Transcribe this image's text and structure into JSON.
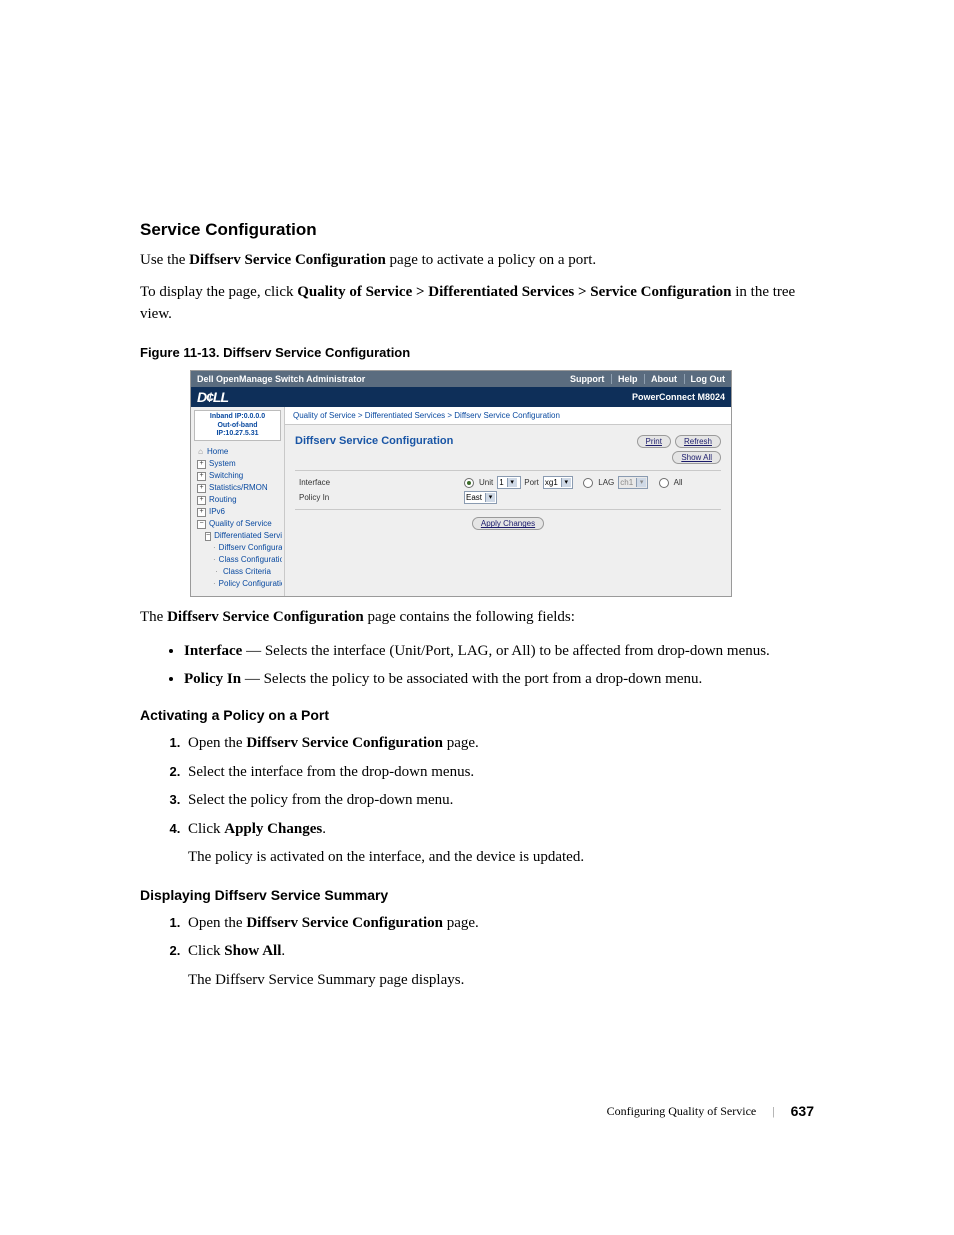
{
  "headings": {
    "h2": "Service Configuration",
    "figcap": "Figure 11-13.    Diffserv Service Configuration",
    "activating": "Activating a Policy on a Port",
    "displaying": "Displaying Diffserv Service Summary"
  },
  "paragraphs": {
    "p1_pre": "Use the ",
    "p1_b": "Diffserv Service Configuration",
    "p1_post": " page to activate a policy on a port.",
    "p2_pre": "To display the page, click ",
    "p2_b": "Quality of Service > Differentiated Services > Service Configuration",
    "p2_post": " in the tree view.",
    "fields_pre": "The ",
    "fields_b": "Diffserv Service Configuration",
    "fields_post": " page contains the following fields:"
  },
  "bullets": {
    "b1_label": "Interface",
    "b1_text": " — Selects the interface (Unit/Port, LAG, or All) to be affected from drop-down menus.",
    "b2_label": "Policy In",
    "b2_text": " — Selects the policy to be associated with the port from a drop-down menu."
  },
  "steps_a": {
    "s1_pre": "Open the ",
    "s1_b": "Diffserv Service Configuration",
    "s1_post": " page.",
    "s2": "Select the interface from the drop-down menus.",
    "s3": "Select the policy from the drop-down menu.",
    "s4_pre": "Click ",
    "s4_b": "Apply Changes",
    "s4_post": ".",
    "s4_sub": "The policy is activated on the interface, and the device is updated."
  },
  "steps_b": {
    "s1_pre": "Open the ",
    "s1_b": "Diffserv Service Configuration",
    "s1_post": " page.",
    "s2_pre": "Click ",
    "s2_b": "Show All",
    "s2_post": ".",
    "s2_sub": "The Diffserv Service Summary page displays."
  },
  "footer": {
    "section": "Configuring Quality of Service",
    "sep": "|",
    "page": "637"
  },
  "screenshot": {
    "topbar": {
      "title": "Dell OpenManage Switch Administrator",
      "links": [
        "Support",
        "Help",
        "About",
        "Log Out"
      ]
    },
    "brand": {
      "logo": "D¢LL",
      "model": "PowerConnect M8024"
    },
    "ipbox": {
      "line1": "Inband IP:0.0.0.0",
      "line2": "Out-of-band IP:10.27.5.31"
    },
    "tree": [
      {
        "lvl": 1,
        "icon": "home",
        "label": "Home"
      },
      {
        "lvl": 1,
        "icon": "plus",
        "label": "System"
      },
      {
        "lvl": 1,
        "icon": "plus",
        "label": "Switching"
      },
      {
        "lvl": 1,
        "icon": "plus",
        "label": "Statistics/RMON"
      },
      {
        "lvl": 1,
        "icon": "plus",
        "label": "Routing"
      },
      {
        "lvl": 1,
        "icon": "plus",
        "label": "IPv6"
      },
      {
        "lvl": 1,
        "icon": "minus",
        "label": "Quality of Service"
      },
      {
        "lvl": 2,
        "icon": "minus",
        "label": "Differentiated Services"
      },
      {
        "lvl": 3,
        "icon": "dash",
        "label": "Diffserv Configuration"
      },
      {
        "lvl": 3,
        "icon": "dash",
        "label": "Class Configuration"
      },
      {
        "lvl": 3,
        "icon": "dash",
        "label": "Class Criteria"
      },
      {
        "lvl": 3,
        "icon": "dash",
        "label": "Policy Configuration"
      }
    ],
    "breadcrumb": "Quality of Service > Differentiated Services > Diffserv Service Configuration",
    "panel": {
      "title": "Diffserv Service Configuration",
      "btn_print": "Print",
      "btn_refresh": "Refresh",
      "btn_showall": "Show All",
      "row1_label": "Interface",
      "row2_label": "Policy In",
      "unit_label": "Unit",
      "unit_value": "1",
      "port_label": "Port",
      "port_value": "xg1",
      "lag_label": "LAG",
      "lag_value": "ch1",
      "all_label": "All",
      "policy_value": "East",
      "apply": "Apply Changes"
    }
  }
}
